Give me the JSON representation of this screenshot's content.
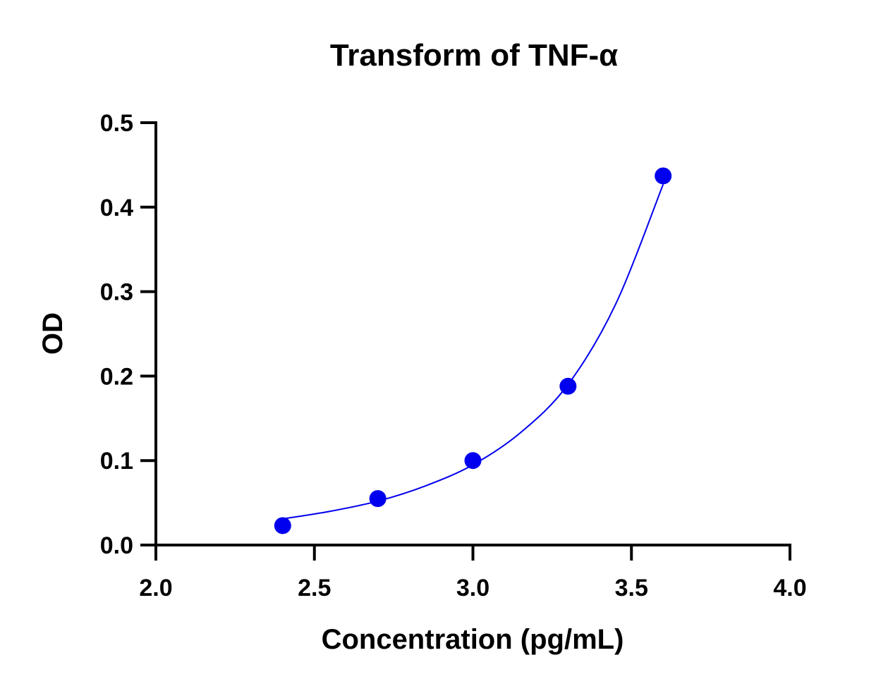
{
  "chart_data": {
    "type": "scatter",
    "title": "Transform of TNF-α",
    "xlabel": "Concentration (pg/mL)",
    "ylabel": "OD",
    "xlim": [
      2.0,
      4.0
    ],
    "ylim": [
      0.0,
      0.5
    ],
    "xticks": [
      "2.0",
      "2.5",
      "3.0",
      "3.5",
      "4.0"
    ],
    "yticks": [
      "0.0",
      "0.1",
      "0.2",
      "0.3",
      "0.4",
      "0.5"
    ],
    "grid": false,
    "color": "#0000ee",
    "series": [
      {
        "name": "data",
        "x": [
          2.4,
          2.7,
          3.0,
          3.3,
          3.6
        ],
        "y": [
          0.023,
          0.055,
          0.1,
          0.188,
          0.437
        ]
      }
    ],
    "fit_curve": {
      "x": [
        2.4,
        2.55,
        2.7,
        2.85,
        3.0,
        3.15,
        3.3,
        3.45,
        3.6
      ],
      "y": [
        0.031,
        0.04,
        0.052,
        0.07,
        0.095,
        0.133,
        0.19,
        0.285,
        0.427
      ]
    }
  }
}
